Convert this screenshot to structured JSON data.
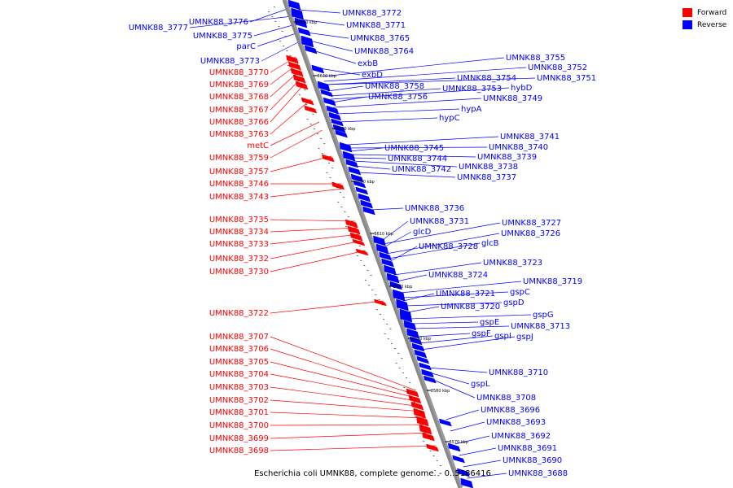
{
  "caption": "Escherichia coli UMNK88, complete genome. - 0..5186416",
  "colors": {
    "forward": "#ff0000",
    "reverse": "#0000ff",
    "axis": "#888888",
    "tick": "#000000"
  },
  "legend": [
    {
      "label": "Forward",
      "color": "#ff0000"
    },
    {
      "label": "Reverse",
      "color": "#0000ff"
    }
  ],
  "ticks": [
    "3650 kbp",
    "3640 kbp",
    "3630 kbp",
    "3620 kbp",
    "3610 kbp",
    "3600 kbp",
    "3590 kbp",
    "3580 kbp",
    "3570 kbp"
  ],
  "forward_labels": [
    "UMNK88_3770",
    "UMNK88_3769",
    "UMNK88_3768",
    "UMNK88_3767",
    "UMNK88_3766",
    "UMNK88_3763",
    "metC",
    "UMNK88_3759",
    "UMNK88_3757",
    "UMNK88_3746",
    "UMNK88_3743",
    "UMNK88_3735",
    "UMNK88_3734",
    "UMNK88_3733",
    "UMNK88_3732",
    "UMNK88_3730",
    "UMNK88_3722",
    "UMNK88_3707",
    "UMNK88_3706",
    "UMNK88_3705",
    "UMNK88_3704",
    "UMNK88_3703",
    "UMNK88_3702",
    "UMNK88_3701",
    "UMNK88_3700",
    "UMNK88_3699",
    "UMNK88_3698"
  ],
  "reverse_left_labels": [
    "UMNK88_3776",
    "UMNK88_3777",
    "UMNK88_3775",
    "parC",
    "UMNK88_3773"
  ],
  "reverse_right_labels": [
    "UMNK88_3772",
    "UMNK88_3771",
    "UMNK88_3765",
    "UMNK88_3764",
    "exbB",
    "exbD",
    "UMNK88_3755",
    "UMNK88_3752",
    "UMNK88_3754",
    "UMNK88_3751",
    "UMNK88_3758",
    "UMNK88_3753",
    "hybD",
    "UMNK88_3756",
    "UMNK88_3749",
    "hypA",
    "hypC",
    "UMNK88_3741",
    "UMNK88_3740",
    "UMNK88_3745",
    "UMNK88_3739",
    "UMNK88_3744",
    "UMNK88_3738",
    "UMNK88_3742",
    "UMNK88_3737",
    "UMNK88_3736",
    "UMNK88_3731",
    "UMNK88_3727",
    "glcD",
    "UMNK88_3726",
    "glcB",
    "UMNK88_3728",
    "UMNK88_3723",
    "UMNK88_3724",
    "UMNK88_3719",
    "gspC",
    "UMNK88_3721",
    "gspD",
    "UMNK88_3720",
    "gspG",
    "gspE",
    "UMNK88_3713",
    "gspF",
    "gspI",
    "gspJ",
    "UMNK88_3710",
    "gspL",
    "UMNK88_3708",
    "UMNK88_3696",
    "UMNK88_3693",
    "UMNK88_3692",
    "UMNK88_3691",
    "UMNK88_3690",
    "UMNK88_3688"
  ]
}
